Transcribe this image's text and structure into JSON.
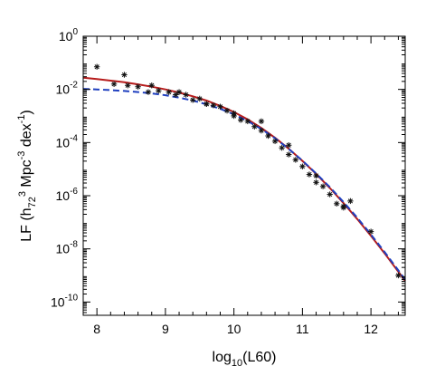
{
  "chart_data": {
    "type": "scatter",
    "xlabel": "log10(L60)",
    "ylabel": "LF (h72^3 Mpc^-3 dex^-1)",
    "xlim": [
      7.8,
      12.5
    ],
    "ylim_log10": [
      -10.5,
      0
    ],
    "y_scale": "log",
    "grid": false,
    "x_ticks": [
      8,
      9,
      10,
      11,
      12
    ],
    "x_tick_labels": [
      "8",
      "9",
      "10",
      "11",
      "12"
    ],
    "y_ticks_log10": [
      0,
      -2,
      -4,
      -6,
      -8,
      -10
    ],
    "y_tick_labels": [
      "10",
      "10",
      "10",
      "10",
      "10",
      "10"
    ],
    "y_tick_exponents": [
      "0",
      "-2",
      "-4",
      "-6",
      "-8",
      "-10"
    ],
    "series": [
      {
        "style": "open squares with error bars",
        "color": "#222222",
        "x": [
          8.0,
          8.4,
          8.8,
          9.2,
          9.6,
          10.0,
          10.4,
          10.8,
          11.2,
          11.6,
          12.0,
          12.4
        ],
        "y_log10": [
          -1.15,
          -1.45,
          -1.85,
          -2.1,
          -2.55,
          -2.9,
          -3.2,
          -4.1,
          -5.25,
          -6.4,
          -7.35,
          -9.0
        ],
        "err_log10": [
          0.15,
          0.1,
          0.1,
          0.08,
          0.07,
          0.06,
          0.07,
          0.08,
          0.1,
          0.12,
          0.08,
          0.75
        ]
      },
      {
        "style": "asterisks",
        "color": "#111111",
        "x": [
          8.25,
          8.45,
          8.6,
          8.75,
          8.9,
          9.05,
          9.15,
          9.3,
          9.4,
          9.5,
          9.6,
          9.7,
          9.8,
          9.9,
          10.0,
          10.1,
          10.2,
          10.3,
          10.4,
          10.5,
          10.6,
          10.7,
          10.8,
          10.9,
          11.0,
          11.1,
          11.2,
          11.3,
          11.4,
          11.5,
          11.6,
          11.7
        ],
        "y_log10": [
          -1.8,
          -1.85,
          -1.9,
          -2.1,
          -2.05,
          -2.1,
          -2.2,
          -2.2,
          -2.4,
          -2.35,
          -2.55,
          -2.6,
          -2.65,
          -2.8,
          -3.0,
          -3.15,
          -3.2,
          -3.4,
          -3.55,
          -3.75,
          -3.95,
          -4.2,
          -4.45,
          -4.65,
          -4.9,
          -5.2,
          -5.5,
          -5.65,
          -5.95,
          -6.3,
          -6.45,
          -6.2
        ]
      },
      {
        "style": "solid line",
        "color": "#b71c1c",
        "x": [
          7.8,
          8.0,
          8.2,
          8.4,
          8.6,
          8.8,
          9.0,
          9.2,
          9.4,
          9.6,
          9.8,
          10.0,
          10.2,
          10.4,
          10.6,
          10.8,
          11.0,
          11.2,
          11.4,
          11.6,
          11.8,
          12.0,
          12.2,
          12.4,
          12.5
        ],
        "y_log10": [
          -1.56,
          -1.61,
          -1.67,
          -1.73,
          -1.81,
          -1.9,
          -2.0,
          -2.12,
          -2.26,
          -2.42,
          -2.62,
          -2.85,
          -3.13,
          -3.45,
          -3.82,
          -4.23,
          -4.69,
          -5.18,
          -5.71,
          -6.28,
          -6.88,
          -7.51,
          -8.17,
          -8.86,
          -9.21
        ]
      },
      {
        "style": "dashed line",
        "color": "#1f3fbf",
        "x": [
          7.8,
          8.0,
          8.2,
          8.4,
          8.6,
          8.8,
          9.0,
          9.2,
          9.4,
          9.6,
          9.8,
          10.0,
          10.2,
          10.4,
          10.6,
          10.8,
          11.0,
          11.2,
          11.4,
          11.6,
          11.8,
          12.0,
          12.2,
          12.4,
          12.5
        ],
        "y_log10": [
          -1.98,
          -2.0,
          -2.03,
          -2.06,
          -2.1,
          -2.15,
          -2.22,
          -2.31,
          -2.42,
          -2.56,
          -2.73,
          -2.94,
          -3.19,
          -3.49,
          -3.84,
          -4.24,
          -4.68,
          -5.16,
          -5.68,
          -6.24,
          -6.83,
          -7.46,
          -8.12,
          -8.81,
          -9.16
        ]
      }
    ]
  }
}
